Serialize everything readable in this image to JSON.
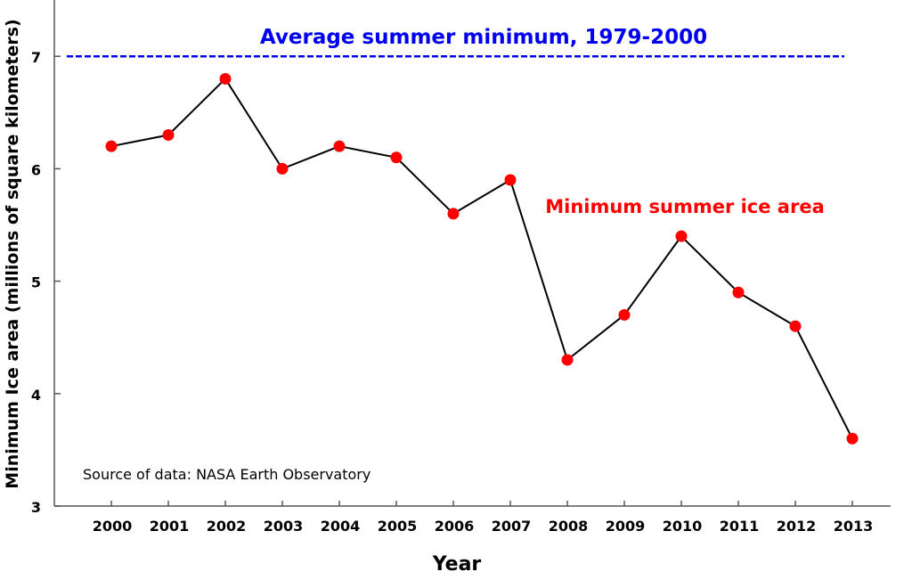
{
  "chart_data": {
    "type": "line",
    "title": "",
    "xlabel": "Year",
    "ylabel": "Minimum Ice area (millions of square kilometers)",
    "categories": [
      "2000",
      "2001",
      "2002",
      "2003",
      "2004",
      "2005",
      "2006",
      "2007",
      "2008",
      "2009",
      "2010",
      "2011",
      "2012",
      "2013"
    ],
    "series": [
      {
        "name": "Minimum summer ice area",
        "color": "#ff0000",
        "values": [
          6.2,
          6.3,
          6.8,
          6.0,
          6.2,
          6.1,
          5.6,
          5.9,
          4.3,
          4.7,
          5.4,
          4.9,
          4.6,
          3.6
        ]
      }
    ],
    "reference_line": {
      "label": "Average summer minimum, 1979-2000",
      "value": 7,
      "color": "#0000ee"
    },
    "ylim": [
      3,
      7.5
    ],
    "yticks": [
      3,
      4,
      5,
      6,
      7
    ],
    "grid": false,
    "annotation": "Source of data: NASA Earth Observatory"
  }
}
